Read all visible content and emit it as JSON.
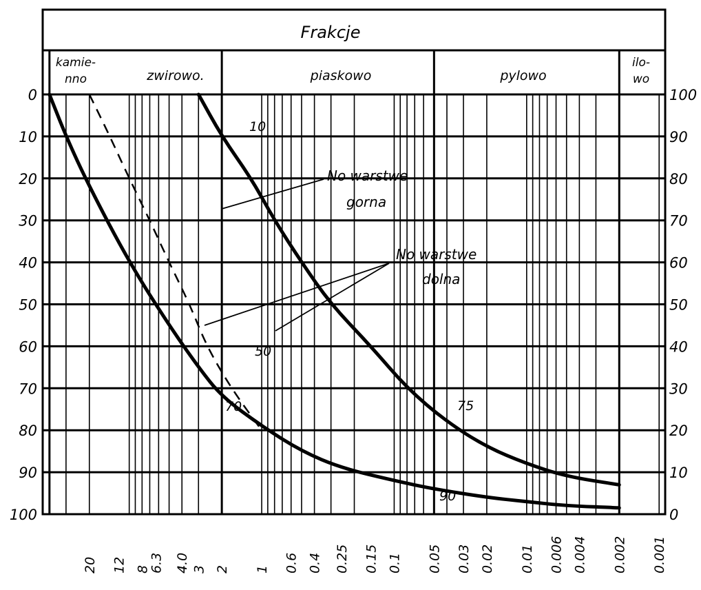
{
  "chart_data": {
    "type": "line",
    "title": "Frakcje",
    "fractions": [
      "kamie-nno",
      "zwirowo.",
      "piaskowo",
      "pylowo",
      "ilo-wo"
    ],
    "left_axis_ticks": [
      "0",
      "10",
      "20",
      "30",
      "40",
      "50",
      "60",
      "70",
      "80",
      "90",
      "100"
    ],
    "right_axis_ticks": [
      "100",
      "90",
      "80",
      "70",
      "60",
      "50",
      "40",
      "30",
      "20",
      "10",
      "0"
    ],
    "x_tick_labels": [
      "6.3",
      "4.0",
      "20",
      "12",
      "8",
      "4",
      "3",
      "2",
      "1",
      "0.6",
      "0.4",
      "0.25",
      "0.15",
      "0.1",
      "0.05",
      "0.03",
      "0.02",
      "0.01",
      "0.006",
      "0.004",
      "0.002",
      "0.001"
    ],
    "x_scale": "log",
    "x_reversed": true,
    "y_reversed_left": true,
    "grid": true,
    "series": [
      {
        "style": "solid",
        "points": [
          [
            40,
            0
          ],
          [
            30,
            10
          ],
          [
            20,
            22
          ],
          [
            10,
            40
          ],
          [
            5,
            55
          ],
          [
            3,
            65
          ],
          [
            2,
            72
          ],
          [
            1,
            79
          ],
          [
            0.5,
            85
          ],
          [
            0.25,
            89
          ],
          [
            0.1,
            92
          ],
          [
            0.05,
            94
          ],
          [
            0.02,
            96
          ],
          [
            0.01,
            97
          ],
          [
            0.005,
            98
          ],
          [
            0.002,
            98.5
          ]
        ]
      },
      {
        "style": "solid",
        "points": [
          [
            3,
            0
          ],
          [
            2,
            10
          ],
          [
            1.2,
            20
          ],
          [
            0.8,
            30
          ],
          [
            0.5,
            40
          ],
          [
            0.3,
            50
          ],
          [
            0.15,
            60
          ],
          [
            0.08,
            70
          ],
          [
            0.04,
            78
          ],
          [
            0.02,
            84
          ],
          [
            0.01,
            88
          ],
          [
            0.005,
            91
          ],
          [
            0.002,
            93
          ]
        ]
      },
      {
        "style": "dashed",
        "points": [
          [
            20,
            0
          ],
          [
            14,
            10
          ],
          [
            10,
            20
          ],
          [
            7,
            30
          ],
          [
            5,
            40
          ],
          [
            3.5,
            50
          ],
          [
            2.6,
            60
          ],
          [
            1.7,
            70
          ],
          [
            1,
            80
          ]
        ]
      }
    ],
    "annotations": [
      {
        "label": "No warstwe",
        "line2": "gorna"
      },
      {
        "label": "No warstwe",
        "line2": "dolna"
      },
      {
        "label": "10"
      },
      {
        "label": "50"
      },
      {
        "label": "70"
      },
      {
        "label": "75"
      },
      {
        "label": "90"
      }
    ]
  }
}
